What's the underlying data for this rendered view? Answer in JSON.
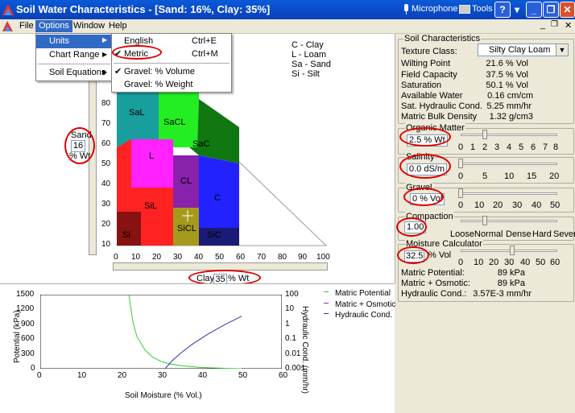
{
  "window": {
    "title": "Soil Water Characteristics - [Sand: 16%, Clay: 35%]",
    "microphone": "Microphone",
    "tools": "Tools"
  },
  "menubar": {
    "items": [
      "File",
      "Options",
      "Window",
      "Help"
    ]
  },
  "options_menu": {
    "items": [
      "Units",
      "Chart Range",
      "Soil Equations"
    ]
  },
  "units_menu": {
    "items": [
      {
        "label": "English",
        "shortcut": "Ctrl+E"
      },
      {
        "label": "Metric",
        "shortcut": "Ctrl+M",
        "checked": true
      },
      {
        "label": "Gravel: % Volume",
        "checked": true
      },
      {
        "label": "Gravel: % Weight"
      }
    ]
  },
  "triangle": {
    "legend": [
      "C - Clay",
      "L - Loam",
      "Sa - Sand",
      "Si - Silt"
    ],
    "regions": [
      "SaL",
      "SaCL",
      "SaC",
      "L",
      "CL",
      "C",
      "SiL",
      "SiCL",
      "SiC",
      "Si"
    ],
    "y_ticks": [
      "80",
      "70",
      "60",
      "50",
      "40",
      "30",
      "20",
      "10"
    ],
    "x_ticks": [
      "0",
      "10",
      "20",
      "30",
      "40",
      "50",
      "60",
      "70",
      "80",
      "90",
      "100"
    ],
    "sand_label": "Sand",
    "sand_value": "16",
    "sand_unit": "% Wt",
    "clay_label": "Clay",
    "clay_value": "35",
    "clay_unit": "% Wt"
  },
  "soil_characteristics": {
    "title": "Soil Characteristics",
    "texture_label": "Texture Class:",
    "texture_value": "Silty Clay Loam",
    "rows": [
      {
        "label": "Wilting Point",
        "value": "21.6 % Vol"
      },
      {
        "label": "Field Capacity",
        "value": "37.5 % Vol"
      },
      {
        "label": "Saturation",
        "value": "50.1 % Vol"
      },
      {
        "label": "Available Water",
        "value": "0.16 cm/cm"
      },
      {
        "label": "Sat. Hydraulic Cond.",
        "value": "5.25 mm/hr"
      },
      {
        "label": "Matric Bulk Density",
        "value": "1.32 g/cm3"
      }
    ]
  },
  "organic_matter": {
    "title": "Organic Matter",
    "value": "2.5 % Wt",
    "ticks": [
      "0",
      "1",
      "2",
      "3",
      "4",
      "5",
      "6",
      "7",
      "8"
    ]
  },
  "salinity": {
    "title": "Salinity",
    "value": "0.0 dS/m",
    "ticks": [
      "0",
      "5",
      "10",
      "15",
      "20"
    ]
  },
  "gravel": {
    "title": "Gravel",
    "value": "0 % Vol",
    "ticks": [
      "0",
      "10",
      "20",
      "30",
      "40",
      "50"
    ]
  },
  "compaction": {
    "title": "Compaction",
    "value": "1.00",
    "ticks": [
      "Loose",
      "Normal",
      "Dense",
      "Hard",
      "Sever"
    ]
  },
  "moisture_calc": {
    "title": "Moisture Calculator",
    "value": "32.5",
    "unit": "% Vol",
    "ticks": [
      "0",
      "10",
      "20",
      "30",
      "40",
      "50",
      "60"
    ],
    "rows": [
      {
        "label": "Matric Potential:",
        "value": "89 kPa"
      },
      {
        "label": "Matric + Osmotic:",
        "value": "89 kPa"
      },
      {
        "label": "Hydraulic Cond.:",
        "value": "3.57E-3 mm/hr"
      }
    ]
  },
  "chart_data": {
    "type": "line",
    "xlabel": "Soil Moisture (% Vol.)",
    "ylabel": "Potential (kPa)",
    "y2label": "Hydraulic Cond. (mm/hr)",
    "xlim": [
      0,
      60
    ],
    "ylim": [
      0,
      1500
    ],
    "y2lim": [
      0.001,
      100
    ],
    "y2scale": "log",
    "x_ticks": [
      "0",
      "10",
      "20",
      "30",
      "40",
      "50",
      "60"
    ],
    "y_ticks": [
      "1500",
      "1200",
      "900",
      "600",
      "300",
      "0"
    ],
    "y2_ticks": [
      "100",
      "10",
      "1",
      "0.1",
      "0.01",
      "0.001"
    ],
    "legend": [
      "Matric Potential",
      "Matric + Osmotic",
      "Hydraulic Cond."
    ],
    "legend_placement": "top-right",
    "colors": {
      "matric": "#33cc33",
      "osmotic": "#6633ff",
      "hydraulic": "#3333aa"
    },
    "series": [
      {
        "name": "Matric Potential",
        "axis": "left",
        "x": [
          22,
          23,
          24,
          26,
          28,
          30,
          32,
          35,
          40,
          45,
          50
        ],
        "y": [
          1500,
          950,
          650,
          380,
          230,
          150,
          100,
          60,
          25,
          10,
          0
        ]
      },
      {
        "name": "Hydraulic Cond.",
        "axis": "right",
        "x": [
          31,
          33,
          35,
          38,
          42,
          46,
          50
        ],
        "y": [
          0.001,
          0.004,
          0.012,
          0.05,
          0.25,
          1,
          3.5
        ]
      }
    ]
  }
}
